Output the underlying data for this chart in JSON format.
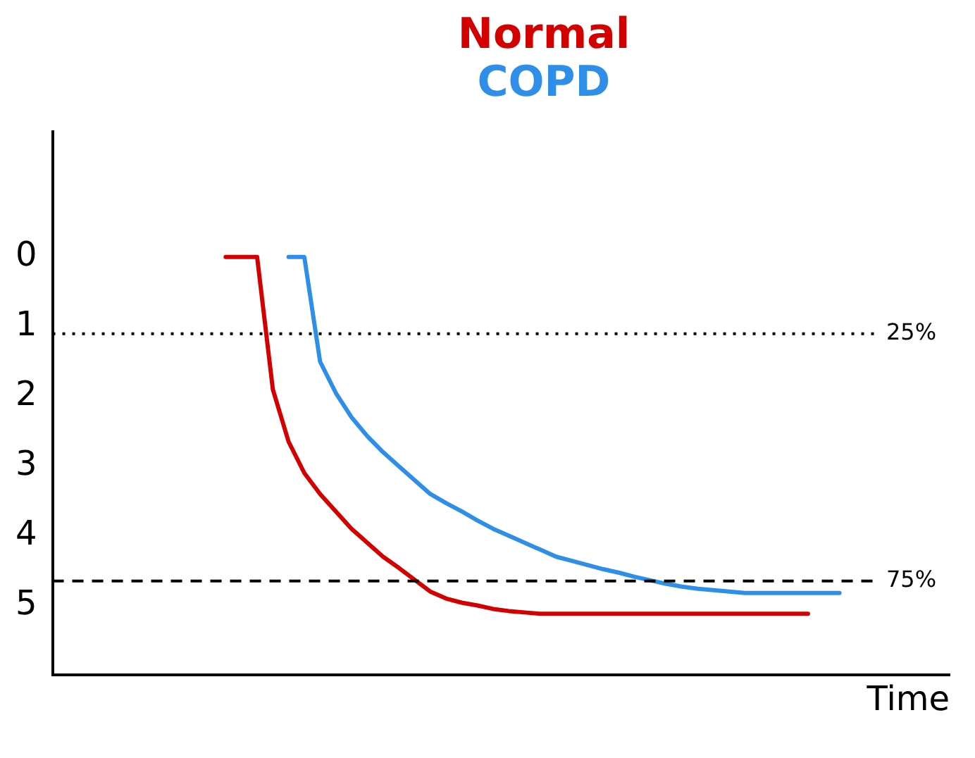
{
  "chart_data": {
    "type": "line",
    "xlabel": "Time",
    "categories": [
      null,
      null,
      null,
      null,
      null,
      null,
      null,
      null,
      null,
      null,
      null,
      null,
      null,
      null,
      null,
      null,
      null,
      null,
      null,
      null,
      null,
      null,
      null,
      null,
      null,
      null,
      null,
      null,
      null,
      null,
      null,
      null,
      null,
      null,
      null,
      null,
      null,
      null,
      null,
      null,
      null,
      null,
      null,
      null,
      null,
      null,
      null,
      null,
      null,
      null,
      null,
      null,
      null,
      null,
      null,
      null,
      null,
      null
    ],
    "series": [
      {
        "name": "Normal",
        "color": "#d40000",
        "values": [
          null,
          null,
          null,
          null,
          null,
          null,
          null,
          null,
          null,
          null,
          null,
          0,
          0,
          0,
          1.9,
          2.65,
          3.1,
          3.4,
          3.65,
          3.9,
          4.1,
          4.3,
          4.46,
          4.63,
          4.8,
          4.9,
          4.96,
          5.0,
          5.05,
          5.08,
          5.1,
          5.12,
          5.12,
          5.12,
          5.12,
          5.12,
          5.12,
          5.12,
          5.12,
          5.12,
          5.12,
          5.12,
          5.12,
          5.12,
          5.12,
          5.12,
          5.12,
          5.12,
          5.12,
          null,
          null,
          null,
          null,
          null,
          null,
          null,
          null,
          null
        ]
      },
      {
        "name": "COPD",
        "color": "#2f8fe8",
        "values": [
          null,
          null,
          null,
          null,
          null,
          null,
          null,
          null,
          null,
          null,
          null,
          null,
          null,
          null,
          null,
          0,
          0,
          1.5,
          1.95,
          2.3,
          2.57,
          2.8,
          3.0,
          3.2,
          3.4,
          3.53,
          3.65,
          3.78,
          3.9,
          4.0,
          4.1,
          4.2,
          4.3,
          4.36,
          4.42,
          4.48,
          4.53,
          4.59,
          4.64,
          4.69,
          4.73,
          4.76,
          4.78,
          4.8,
          4.82,
          4.82,
          4.82,
          4.82,
          4.82,
          4.82,
          4.82,
          null,
          null,
          null,
          null,
          null,
          null,
          null
        ]
      }
    ],
    "ylim": [
      6,
      -1.8
    ],
    "yticks": [
      0,
      1,
      2,
      3,
      4,
      5
    ],
    "tick_labels": "y",
    "grid": false,
    "legend": "top",
    "marker": "none",
    "line_style": "solid",
    "ref_lines": [
      {
        "axis": "y",
        "value": 1.1,
        "color": "#000000",
        "line_style": "dotted"
      },
      {
        "axis": "y",
        "value": 4.65,
        "color": "#000000",
        "line_style": "dashed"
      }
    ],
    "annotations": [
      "25%",
      "75%"
    ]
  }
}
